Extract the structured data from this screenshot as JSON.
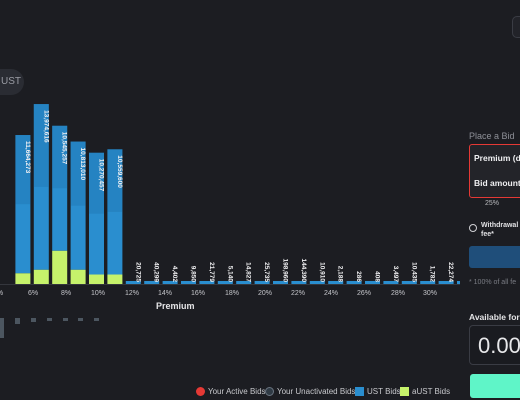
{
  "header": {
    "pill_label": "UST"
  },
  "chart_data": {
    "type": "bar",
    "xlabel": "Premium",
    "x_ticks": [
      "%",
      "6%",
      "8%",
      "10%",
      "12%",
      "14%",
      "16%",
      "18%",
      "20%",
      "22%",
      "24%",
      "26%",
      "28%",
      "30%"
    ],
    "bar_labels": [
      "",
      "11,664,273",
      "13,974,616",
      "10,545,257",
      "10,813,010",
      "10,270,457",
      "10,559,600",
      "20,725",
      "40,299",
      "4,402",
      "9,850",
      "21,779",
      "5,140",
      "14,827",
      "25,735",
      "198,960",
      "144,390",
      "10,910",
      "2,188",
      "286",
      "408",
      "3,497",
      "10,435",
      "1,782",
      "22,274",
      "57,021",
      "277,499"
    ],
    "series": [
      {
        "name": "UST Bids",
        "values": [
          0,
          11664273,
          13974616,
          10545257,
          10813010,
          10270457,
          10559600,
          20725,
          40299,
          4402,
          9850,
          21779,
          5140,
          14827,
          25735,
          198960,
          144390,
          10910,
          2188,
          286,
          408,
          3497,
          10435,
          1782,
          22274,
          57021,
          277499
        ]
      },
      {
        "name": "aUST Bids",
        "values": [
          0,
          900000,
          1200000,
          2800000,
          1200000,
          800000,
          800000,
          0,
          0,
          0,
          0,
          0,
          0,
          0,
          0,
          0,
          0,
          0,
          0,
          0,
          0,
          0,
          0,
          0,
          0,
          0,
          0
        ]
      }
    ],
    "legend": [
      "Your Active Bids",
      "Your Unactivated Bids",
      "UST Bids",
      "aUST Bids"
    ]
  },
  "legend_colors": {
    "active": "#e53935",
    "unactivated": "#2f3a44",
    "ust": "#2a8ecf",
    "aust": "#c6f26b"
  },
  "panel": {
    "title": "Place a Bid",
    "premium_label": "Premium (d",
    "bid_amount_label": "Bid amount",
    "percent": "25%",
    "withdrawal_line1": "Withdrawal",
    "withdrawal_line2": "fee*",
    "note": "* 100% of all fe",
    "available_label": "Available for '",
    "amount": "0.00"
  }
}
